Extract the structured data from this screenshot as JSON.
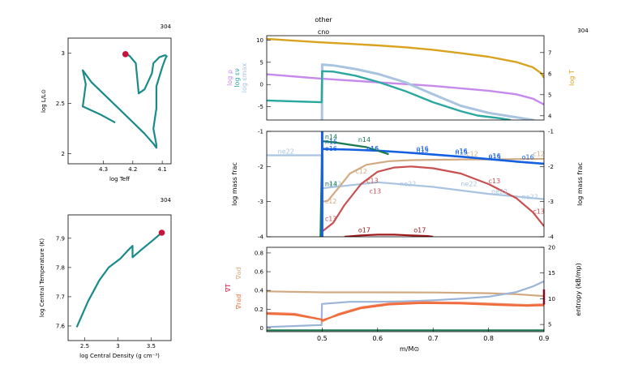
{
  "header": {
    "model_number": "304",
    "center_label_1": "other",
    "center_label_2": "cno"
  },
  "colors": {
    "teal": "#1a8a8a",
    "crimson": "#c8143c",
    "purple": "#c58aec",
    "cyan": "#2aa8a0",
    "lightblue": "#a8c4e0",
    "gold": "#d9a21f",
    "green": "#1a7a50",
    "blue": "#1560e0",
    "tan": "#d2aa82",
    "rose": "#c85050",
    "darkred": "#a01818",
    "orange": "#f06a3a",
    "paleblue": "#9cb4d8",
    "salmon": "#ee8460"
  },
  "chart_data": [
    {
      "type": "line",
      "name": "hr",
      "xlabel": "log Teff",
      "ylabel": "log L/L⊙",
      "model_label": "304",
      "xlim": [
        4.42,
        4.07
      ],
      "ylim": [
        1.9,
        3.15
      ],
      "xticks": [
        4.3,
        4.2,
        4.1
      ],
      "xtick_labels": [
        "4.3",
        "4.2",
        "4.1"
      ],
      "yticks": [
        2,
        2.5,
        3
      ],
      "ytick_labels": [
        "2",
        "2.5",
        "3"
      ],
      "x": [
        4.26,
        4.31,
        4.37,
        4.36,
        4.37,
        4.34,
        4.28,
        4.22,
        4.16,
        4.13,
        4.12,
        4.12,
        4.13,
        4.12,
        4.12,
        4.1,
        4.09,
        4.085,
        4.09,
        4.11,
        4.13,
        4.135,
        4.16,
        4.18,
        4.185,
        4.19,
        4.21,
        4.22
      ],
      "y": [
        2.31,
        2.39,
        2.47,
        2.69,
        2.83,
        2.71,
        2.54,
        2.37,
        2.2,
        2.1,
        2.06,
        2.09,
        2.25,
        2.45,
        2.67,
        2.86,
        2.94,
        2.97,
        2.98,
        2.96,
        2.9,
        2.8,
        2.64,
        2.6,
        2.75,
        2.9,
        2.97,
        2.99
      ],
      "current_point": {
        "x": 4.225,
        "y": 2.99
      }
    },
    {
      "type": "line",
      "name": "center",
      "xlabel": "log Central Density (g cm⁻³)",
      "ylabel": "log Central Temperature (K)",
      "model_label": "304",
      "xlim": [
        2.25,
        3.8
      ],
      "ylim": [
        7.55,
        7.98
      ],
      "xticks": [
        2.5,
        3,
        3.5
      ],
      "xtick_labels": [
        "2.5",
        "3",
        "3.5"
      ],
      "yticks": [
        7.6,
        7.7,
        7.8,
        7.9
      ],
      "ytick_labels": [
        "7.6",
        "7.7",
        "7.8",
        "7.9"
      ],
      "x": [
        2.38,
        2.55,
        2.72,
        2.86,
        3.04,
        3.14,
        3.22,
        3.22,
        3.36,
        3.52,
        3.66
      ],
      "y": [
        7.596,
        7.684,
        7.756,
        7.8,
        7.831,
        7.856,
        7.874,
        7.835,
        7.862,
        7.892,
        7.919
      ],
      "current_point": {
        "x": 3.66,
        "y": 7.919
      }
    },
    {
      "type": "line",
      "name": "profile-top",
      "xlim": [
        0.4,
        0.9
      ],
      "ylim_left": [
        -8,
        11
      ],
      "ylim_right": [
        3.8,
        7.8
      ],
      "yticks_left": [
        -5,
        0,
        5,
        10
      ],
      "ytick_labels_left": [
        "-5",
        "0",
        "5",
        "10"
      ],
      "yticks_right": [
        4,
        5,
        6,
        7
      ],
      "ytick_labels_right": [
        "4",
        "5",
        "6",
        "7"
      ],
      "left_labels": [
        "log ρ",
        "log εν",
        "log εmax"
      ],
      "right_label": "log T",
      "model_label": "304",
      "series": [
        {
          "name": "log T",
          "axis": "right",
          "color": "gold",
          "x": [
            0.4,
            0.45,
            0.5,
            0.55,
            0.6,
            0.65,
            0.7,
            0.75,
            0.8,
            0.85,
            0.88,
            0.895,
            0.9
          ],
          "y": [
            7.65,
            7.56,
            7.48,
            7.41,
            7.34,
            7.25,
            7.13,
            6.97,
            6.8,
            6.55,
            6.3,
            6.02,
            5.8
          ]
        },
        {
          "name": "log ρ",
          "axis": "left",
          "color": "purple",
          "x": [
            0.4,
            0.5,
            0.6,
            0.7,
            0.8,
            0.85,
            0.88,
            0.9
          ],
          "y": [
            2.3,
            1.3,
            0.5,
            -0.3,
            -1.4,
            -2.2,
            -3.2,
            -4.5
          ]
        },
        {
          "name": "log εmax",
          "axis": "left",
          "color": "lightblue",
          "x": [
            0.4,
            0.499,
            0.4995,
            0.5,
            0.52,
            0.56,
            0.6,
            0.65,
            0.7,
            0.75,
            0.8,
            0.84,
            0.88,
            0.9
          ],
          "y": [
            -9,
            -9,
            -9,
            4.5,
            4.3,
            3.5,
            2.4,
            0.5,
            -2.2,
            -4.8,
            -6.4,
            -7.2,
            -8,
            -9
          ]
        },
        {
          "name": "log εν",
          "axis": "left",
          "color": "cyan",
          "x": [
            0.4,
            0.499,
            0.5,
            0.52,
            0.56,
            0.6,
            0.65,
            0.7,
            0.75,
            0.78,
            0.82,
            0.84
          ],
          "y": [
            -3.6,
            -4.0,
            3.0,
            2.9,
            2.0,
            0.6,
            -1.5,
            -4.0,
            -6.0,
            -7.0,
            -7.6,
            -8
          ]
        }
      ]
    },
    {
      "type": "line",
      "name": "profile-middle",
      "xlim": [
        0.4,
        0.9
      ],
      "ylim": [
        -4,
        -1
      ],
      "yticks": [
        -4,
        -3,
        -2,
        -1
      ],
      "ytick_labels": [
        "-4",
        "-3",
        "-2",
        "-1"
      ],
      "yticks_right": [
        -4,
        -3,
        -2,
        -1
      ],
      "ytick_labels_right": [
        "-4",
        "-3",
        "-2",
        "-1"
      ],
      "ylabel": "log mass frac",
      "ylabel_right": "log mass frac",
      "series": [
        {
          "name": "ne22",
          "color": "lightblue",
          "x": [
            0.4,
            0.499,
            0.5,
            0.6,
            0.7,
            0.8,
            0.9
          ],
          "y": [
            -1.68,
            -1.68,
            -2.62,
            -2.45,
            -2.58,
            -2.78,
            -2.93
          ]
        },
        {
          "name": "c12",
          "color": "tan",
          "x": [
            0.5,
            0.51,
            0.53,
            0.55,
            0.58,
            0.62,
            0.66,
            0.7,
            0.75,
            0.8,
            0.85,
            0.9
          ],
          "y": [
            -3.0,
            -2.98,
            -2.6,
            -2.2,
            -1.95,
            -1.85,
            -1.82,
            -1.81,
            -1.8,
            -1.8,
            -1.79,
            -1.78
          ]
        },
        {
          "name": "o16",
          "color": "blue",
          "x": [
            0.499,
            0.5,
            0.55,
            0.6,
            0.65,
            0.7,
            0.75,
            0.8,
            0.85,
            0.9
          ],
          "y": [
            -1.5,
            -1.5,
            -1.52,
            -1.55,
            -1.6,
            -1.66,
            -1.72,
            -1.79,
            -1.86,
            -1.92
          ]
        },
        {
          "name": "c13",
          "color": "rose",
          "x": [
            0.5,
            0.52,
            0.54,
            0.57,
            0.6,
            0.63,
            0.66,
            0.7,
            0.75,
            0.8,
            0.85,
            0.88,
            0.9
          ],
          "y": [
            -3.85,
            -3.6,
            -3.1,
            -2.5,
            -2.15,
            -2.03,
            -2.0,
            -2.05,
            -2.2,
            -2.5,
            -2.9,
            -3.3,
            -3.7
          ]
        },
        {
          "name": "n14",
          "color": "green",
          "x": [
            0.497,
            0.5,
            0.52,
            0.55,
            0.58,
            0.6,
            0.62
          ],
          "y": [
            -4.0,
            -1.28,
            -1.31,
            -1.38,
            -1.45,
            -1.55,
            -1.65
          ]
        },
        {
          "name": "n15",
          "color": "blue",
          "x": [
            0.5,
            0.5
          ],
          "y": [
            -1.0,
            -4.0
          ]
        },
        {
          "name": "o17",
          "color": "darkred",
          "x": [
            0.54,
            0.57,
            0.6,
            0.63,
            0.66,
            0.69,
            0.7
          ],
          "y": [
            -4.0,
            -3.96,
            -3.94,
            -3.94,
            -3.96,
            -3.98,
            -4.0
          ]
        }
      ],
      "line_labels": [
        {
          "text": "ne22",
          "series": "ne22",
          "x": 0.42,
          "y": -1.64
        },
        {
          "text": "ne22",
          "series": "ne22",
          "x": 0.505,
          "y": -2.56
        },
        {
          "text": "ne22",
          "series": "ne22",
          "x": 0.64,
          "y": -2.56
        },
        {
          "text": "ne22",
          "series": "ne22",
          "x": 0.75,
          "y": -2.56
        },
        {
          "text": "ne22",
          "series": "ne22",
          "x": 0.86,
          "y": -2.93
        },
        {
          "text": "ne22",
          "series": "ne22",
          "x": 0.805,
          "y": -2.78
        },
        {
          "text": "c12",
          "series": "c12",
          "x": 0.505,
          "y": -3.05
        },
        {
          "text": "c12",
          "series": "c12",
          "x": 0.56,
          "y": -2.2
        },
        {
          "text": "c12",
          "series": "c12",
          "x": 0.76,
          "y": -1.7
        },
        {
          "text": "c12",
          "series": "c12",
          "x": 0.88,
          "y": -1.7
        },
        {
          "text": "c13",
          "series": "c13",
          "x": 0.505,
          "y": -3.55
        },
        {
          "text": "c13",
          "series": "c13",
          "x": 0.58,
          "y": -2.46
        },
        {
          "text": "c13",
          "series": "c13",
          "x": 0.585,
          "y": -2.76
        },
        {
          "text": "c13",
          "series": "c13",
          "x": 0.8,
          "y": -2.48
        },
        {
          "text": "c13",
          "series": "c13",
          "x": 0.88,
          "y": -3.34
        },
        {
          "text": "o16",
          "series": "o16",
          "x": 0.505,
          "y": -1.55
        },
        {
          "text": "o16",
          "series": "o16",
          "x": 0.58,
          "y": -1.55
        },
        {
          "text": "o16",
          "series": "o16",
          "x": 0.67,
          "y": -1.55
        },
        {
          "text": "o16",
          "series": "o16",
          "x": 0.74,
          "y": -1.62
        },
        {
          "text": "o16",
          "series": "o16",
          "x": 0.8,
          "y": -1.76
        },
        {
          "text": "o16",
          "series": "o16",
          "x": 0.86,
          "y": -1.8
        },
        {
          "text": "n15",
          "series": "n15",
          "x": 0.505,
          "y": -1.36
        },
        {
          "text": "n15",
          "series": "n15",
          "x": 0.58,
          "y": -1.57
        },
        {
          "text": "n15",
          "series": "n15",
          "x": 0.67,
          "y": -1.6
        },
        {
          "text": "n15",
          "series": "n15",
          "x": 0.74,
          "y": -1.66
        },
        {
          "text": "n15",
          "series": "n15",
          "x": 0.8,
          "y": -1.8
        },
        {
          "text": "n14",
          "series": "n14",
          "x": 0.505,
          "y": -1.22
        },
        {
          "text": "n14",
          "series": "n14",
          "x": 0.565,
          "y": -1.3
        },
        {
          "text": "n14",
          "series": "n14",
          "x": 0.505,
          "y": -2.56
        },
        {
          "text": "o17",
          "series": "o17",
          "x": 0.565,
          "y": -3.87
        },
        {
          "text": "o17",
          "series": "o17",
          "x": 0.665,
          "y": -3.87
        }
      ]
    },
    {
      "type": "line",
      "name": "profile-bottom",
      "xlim": [
        0.4,
        0.9
      ],
      "ylim": [
        -0.04,
        0.86
      ],
      "yticks": [
        0,
        0.2,
        0.4,
        0.6,
        0.8
      ],
      "ytick_labels": [
        "0",
        "0.2",
        "0.4",
        "0.6",
        "0.8"
      ],
      "ylim_right": [
        3.6,
        20
      ],
      "yticks_right": [
        5,
        10,
        15,
        20
      ],
      "ytick_labels_right": [
        "5",
        "10",
        "15",
        "20"
      ],
      "xlabel": "m/M⊙",
      "xticks": [
        0.5,
        0.6,
        0.7,
        0.8,
        0.9
      ],
      "xtick_labels": [
        "0.5",
        "0.6",
        "0.7",
        "0.8",
        "0.9"
      ],
      "left_labels": [
        "∇ad",
        "∇T",
        "∇rad"
      ],
      "right_label": "entropy (kB/mp)",
      "series": [
        {
          "name": "∇ad",
          "color": "tan",
          "x": [
            0.4,
            0.5,
            0.6,
            0.7,
            0.8,
            0.85,
            0.9
          ],
          "y": [
            0.39,
            0.38,
            0.38,
            0.378,
            0.37,
            0.36,
            0.34
          ]
        },
        {
          "name": "entropy",
          "axis": "right",
          "color": "paleblue",
          "x": [
            0.4,
            0.499,
            0.4995,
            0.55,
            0.6,
            0.65,
            0.7,
            0.75,
            0.8,
            0.85,
            0.88,
            0.9
          ],
          "y": [
            4.5,
            4.9,
            9.0,
            9.4,
            9.4,
            9.5,
            9.7,
            10.0,
            10.4,
            11.3,
            12.4,
            13.4
          ]
        },
        {
          "name": "∇rad",
          "color": "salmon",
          "x": [
            0.4,
            0.45,
            0.499,
            0.5,
            0.53,
            0.57,
            0.62,
            0.68,
            0.75,
            0.82,
            0.87,
            0.89,
            0.9
          ],
          "y": [
            0.16,
            0.15,
            0.09,
            0.07,
            0.15,
            0.22,
            0.26,
            0.275,
            0.27,
            0.255,
            0.245,
            0.25,
            0.25
          ]
        },
        {
          "name": "∇T",
          "color": "orange",
          "x": [
            0.4,
            0.45,
            0.499,
            0.5,
            0.53,
            0.57,
            0.62,
            0.68,
            0.75,
            0.82,
            0.87,
            0.89,
            0.9
          ],
          "y": [
            0.15,
            0.14,
            0.09,
            0.08,
            0.14,
            0.21,
            0.25,
            0.265,
            0.26,
            0.245,
            0.235,
            0.24,
            0.24
          ]
        },
        {
          "name": "mixing",
          "color": "green",
          "x": [
            0.4,
            0.9
          ],
          "y": [
            -0.025,
            -0.025
          ]
        }
      ]
    }
  ]
}
